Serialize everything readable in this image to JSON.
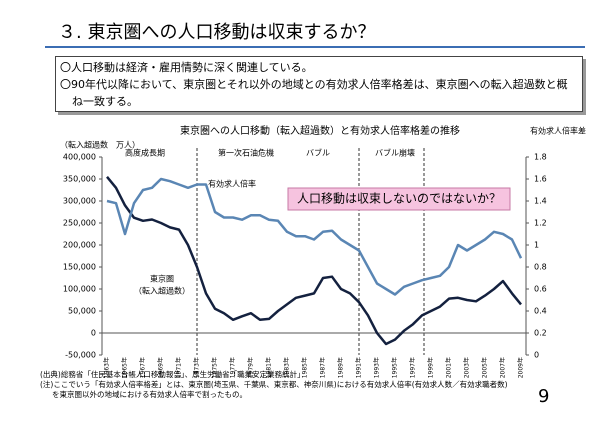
{
  "slide": {
    "title": "３. 東京圏への人口移動は収束するか？",
    "bullets": [
      "〇人口移動は経済・雇用情勢に深く関連している。",
      "〇90年代以降において、東京圏とそれ以外の地域との有効求人倍率格差は、東京圏への転入超過数と概ね一致する。"
    ],
    "notes": [
      "(出典)総務省「住民基本台帳人口移動報告」、厚生労働省「職業安定業務統計」",
      "(注)ここでいう「有効求人倍率格差」とは、東京圏(埼玉県、千葉県、東京都、神奈川県)における有効求人倍率(有効求人数／有効求職者数)",
      "を東京圏以外の地域における有効求人倍率で割ったもの。"
    ],
    "page": "9"
  },
  "chart_data": {
    "type": "line",
    "title": "東京圏への人口移動（転入超過数）と有効求人倍率格差の推移",
    "y_label": "（転入超過数　万人）",
    "y2_label": "有効求人倍率差",
    "annotations": [
      "高度成長期",
      "第一次石油危機",
      "バブル",
      "バブル崩壊",
      "有効求人倍率",
      "東京圏",
      "（転入超過数）",
      "人口移動は収束しないのではないか？"
    ],
    "categories": [
      "1963年",
      null,
      "1965年",
      null,
      "1967年",
      null,
      "1969年",
      null,
      "1971年",
      null,
      "1973年",
      null,
      "1975年",
      null,
      "1977年",
      null,
      "1979年",
      null,
      "1981年",
      null,
      "1983年",
      null,
      "1985年",
      null,
      "1987年",
      null,
      "1989年",
      null,
      "1991年",
      null,
      "1993年",
      null,
      "1995年",
      null,
      "1997年",
      null,
      "1999年",
      null,
      "2001年",
      null,
      "2003年",
      null,
      "2005年",
      null,
      "2007年",
      null,
      "2009年"
    ],
    "series": [
      {
        "name": "東京圏（転入超過数）",
        "color": "#14213f",
        "values": [
          355000,
          330000,
          290000,
          262000,
          255000,
          258000,
          250000,
          240000,
          235000,
          200000,
          150000,
          90000,
          55000,
          45000,
          30000,
          38000,
          45000,
          30000,
          32000,
          50000,
          65000,
          80000,
          85000,
          90000,
          125000,
          128000,
          100000,
          90000,
          70000,
          40000,
          0,
          -25000,
          -15000,
          5000,
          20000,
          40000,
          50000,
          60000,
          78000,
          80000,
          75000,
          72000,
          85000,
          100000,
          118000,
          90000,
          65000
        ]
      },
      {
        "name": "有効求人倍率",
        "color": "#5a86b4",
        "axis": "y2",
        "values": [
          1.4,
          1.38,
          1.1,
          1.38,
          1.5,
          1.52,
          1.6,
          1.58,
          1.55,
          1.52,
          1.55,
          1.55,
          1.3,
          1.25,
          1.25,
          1.23,
          1.27,
          1.27,
          1.23,
          1.22,
          1.12,
          1.08,
          1.08,
          1.05,
          1.12,
          1.13,
          1.05,
          1.0,
          0.95,
          0.8,
          0.65,
          0.6,
          0.55,
          0.62,
          0.65,
          0.68,
          0.7,
          0.72,
          0.8,
          1.0,
          0.95,
          1.0,
          1.05,
          1.12,
          1.1,
          1.05,
          0.88
        ]
      }
    ],
    "ylim": [
      -50000,
      400000
    ],
    "yticks": [
      {
        "value": -50000,
        "label": "-50,000"
      },
      0,
      {
        "value": 50000,
        "label": "50,000"
      },
      {
        "value": 100000,
        "label": "100,000"
      },
      {
        "value": 150000,
        "label": "150,000"
      },
      {
        "value": 200000,
        "label": "200,000"
      },
      {
        "value": 250000,
        "label": "250,000"
      },
      {
        "value": 300000,
        "label": "300,000"
      },
      {
        "value": 350000,
        "label": "350,000"
      },
      {
        "value": 400000,
        "label": "400,000"
      }
    ],
    "y2lim": [
      0,
      1.8
    ],
    "y2ticks": [
      0,
      0.2,
      0.4,
      0.6,
      0.8,
      1,
      1.2,
      1.4,
      1.6,
      1.8
    ]
  }
}
